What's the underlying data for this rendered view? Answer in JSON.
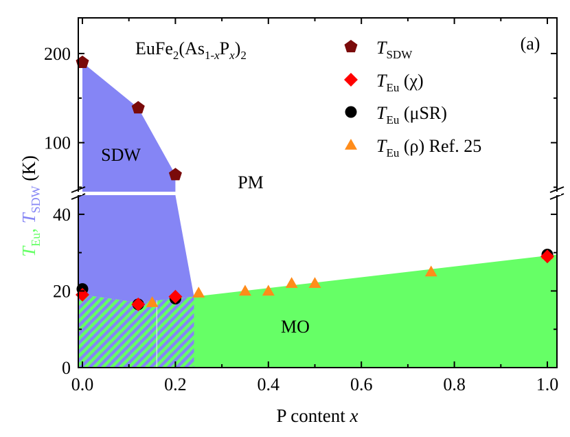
{
  "chart_data": {
    "type": "scatter",
    "panel_label": "(a)",
    "compound": {
      "base": "EuFe",
      "sub1": "2",
      "mid": "(As",
      "sub2": "1-",
      "sub2_var": "x",
      "p": "P",
      "sub3_var": "x",
      "close": ")",
      "sub4": "2"
    },
    "xlabel": {
      "text": "P content ",
      "var": "x"
    },
    "ylabel": {
      "t1": "T",
      "t1_sub": "Eu",
      "sep": ", ",
      "t2": "T",
      "t2_sub": "SDW",
      "unit": " (K)"
    },
    "xlim": [
      0.0,
      1.0
    ],
    "ylim_lower": [
      0,
      45
    ],
    "ylim_upper": [
      45,
      240
    ],
    "x_ticks": [
      "0.0",
      "0.2",
      "0.4",
      "0.6",
      "0.8",
      "1.0"
    ],
    "y_ticks_lower": [
      "0",
      "20",
      "40"
    ],
    "y_ticks_upper": [
      "100",
      "200"
    ],
    "regions": [
      {
        "label": "SDW",
        "color": "#8585f5"
      },
      {
        "label": "PM",
        "color": "#ffffff"
      },
      {
        "label": "MO",
        "color": "#66ff66"
      }
    ],
    "series": [
      {
        "key": "sdw",
        "legend_main": "T",
        "legend_sub": "SDW",
        "legend_rest": "",
        "marker": "pentagon",
        "color": "#7a0a0a",
        "points": [
          [
            0.0,
            190
          ],
          [
            0.12,
            139
          ],
          [
            0.2,
            64
          ]
        ]
      },
      {
        "key": "chi",
        "legend_main": "T",
        "legend_sub": "Eu",
        "legend_rest": " (χ)",
        "marker": "diamond",
        "color": "#ff0000",
        "points": [
          [
            0.0,
            19
          ],
          [
            0.12,
            16.5
          ],
          [
            0.2,
            18.5
          ],
          [
            1.0,
            29
          ]
        ]
      },
      {
        "key": "musr",
        "legend_main": "T",
        "legend_sub": "Eu",
        "legend_rest": " (μSR)",
        "marker": "circle",
        "color": "#000000",
        "points": [
          [
            0.0,
            20.5
          ],
          [
            0.12,
            16.5
          ],
          [
            0.2,
            18
          ],
          [
            1.0,
            29.5
          ]
        ]
      },
      {
        "key": "rho",
        "legend_main": "T",
        "legend_sub": "Eu",
        "legend_rest": " (ρ) Ref. 25",
        "marker": "triangle",
        "color": "#ff8c1a",
        "points": [
          [
            0.15,
            17
          ],
          [
            0.25,
            19.5
          ],
          [
            0.35,
            20
          ],
          [
            0.4,
            20
          ],
          [
            0.45,
            22
          ],
          [
            0.5,
            22
          ],
          [
            0.75,
            25
          ],
          [
            1.0,
            29.5
          ]
        ]
      }
    ]
  }
}
